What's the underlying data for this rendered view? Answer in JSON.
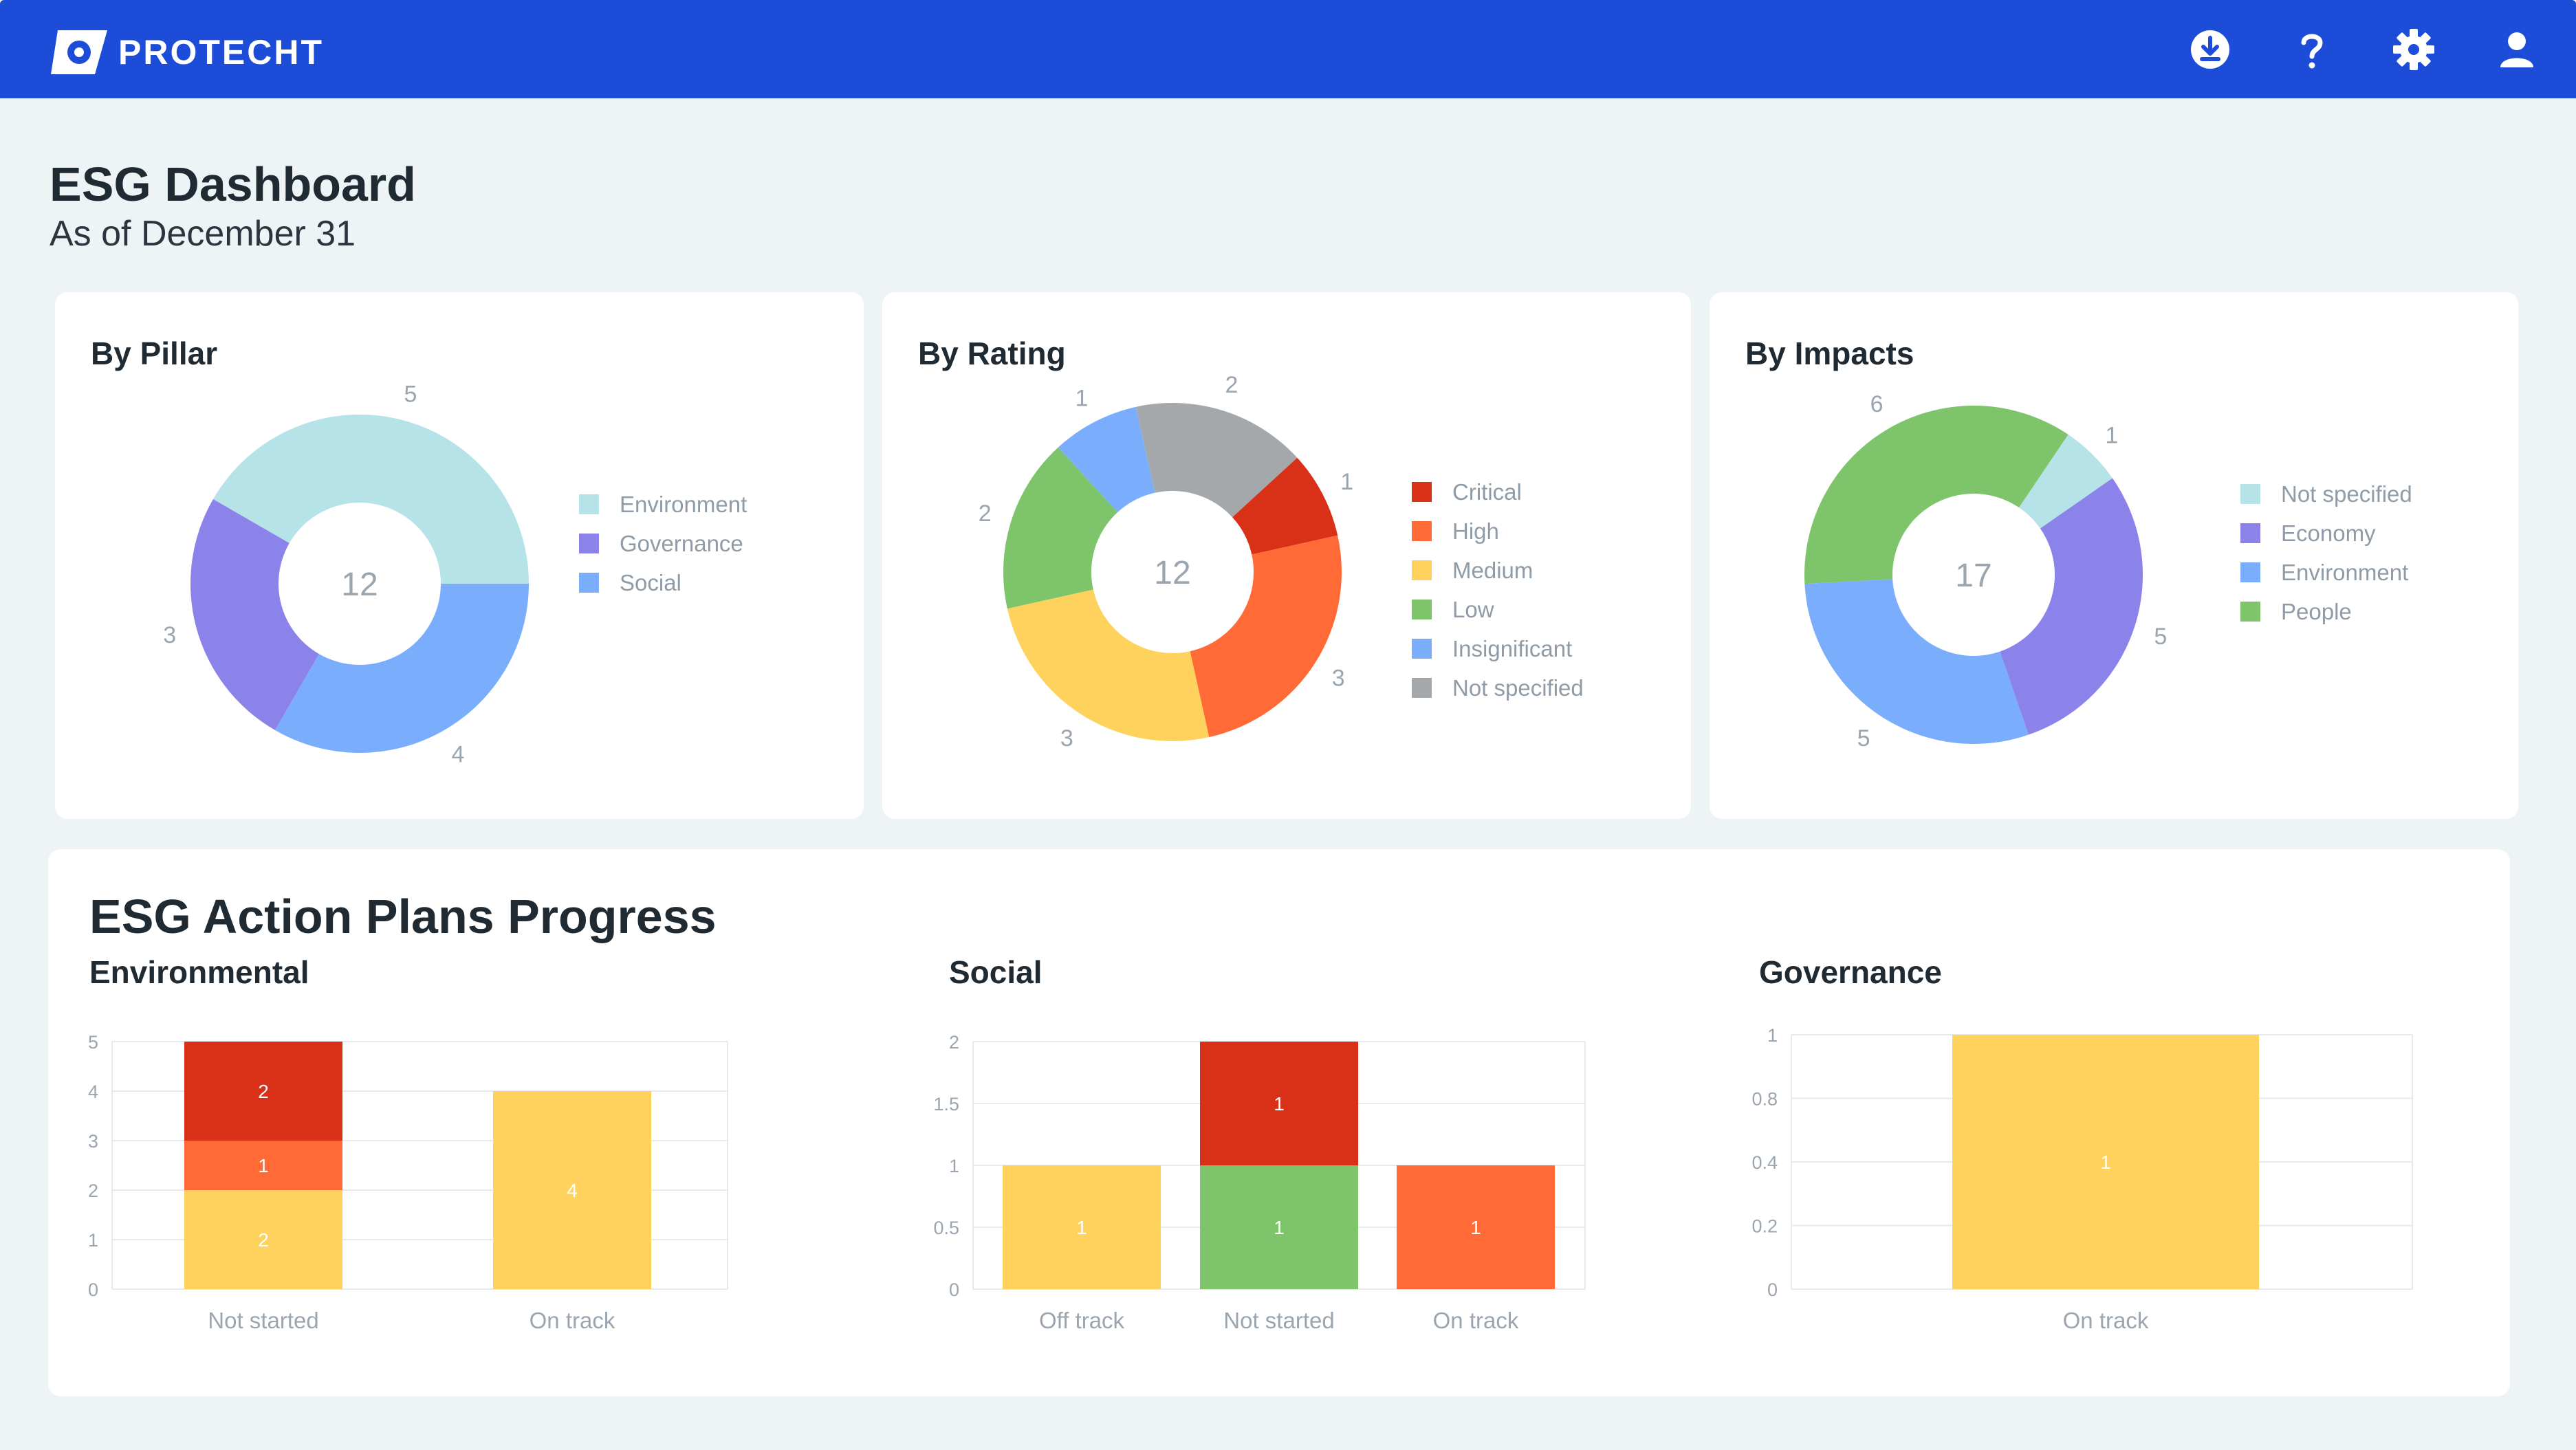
{
  "app": {
    "brand": "PROTECHT",
    "accent": "#1c4cd8",
    "toolbar_icons": [
      "download-icon",
      "help-icon",
      "gear-icon",
      "user-icon"
    ]
  },
  "header": {
    "title": "ESG Dashboard",
    "subtitle": "As of December 31"
  },
  "donuts": [
    {
      "title": "By Pillar",
      "total": "12",
      "slices": [
        {
          "name": "Environment",
          "value": 5,
          "color": "#b5e3e8"
        },
        {
          "name": "Governance",
          "value": 3,
          "color": "#8b83ea"
        },
        {
          "name": "Social",
          "value": 4,
          "color": "#7aaefc"
        }
      ]
    },
    {
      "title": "By Rating",
      "total": "12",
      "slices": [
        {
          "name": "Critical",
          "value": 1,
          "color": "#d93118"
        },
        {
          "name": "High",
          "value": 3,
          "color": "#ff6a37"
        },
        {
          "name": "Medium",
          "value": 3,
          "color": "#fed25c"
        },
        {
          "name": "Low",
          "value": 2,
          "color": "#7ec46b"
        },
        {
          "name": "Insignificant",
          "value": 1,
          "color": "#7aaefc"
        },
        {
          "name": "Not specified",
          "value": 2,
          "color": "#a4a8ab"
        }
      ]
    },
    {
      "title": "By Impacts",
      "total": "17",
      "slices": [
        {
          "name": "Not specified",
          "value": 1,
          "color": "#b5e3e8"
        },
        {
          "name": "Economy",
          "value": 5,
          "color": "#8b83ea"
        },
        {
          "name": "Environment",
          "value": 5,
          "color": "#7aaefc"
        },
        {
          "name": "People",
          "value": 6,
          "color": "#7ec46b"
        }
      ]
    }
  ],
  "plans": {
    "title": "ESG Action Plans Progress",
    "charts": [
      {
        "title": "Environmental",
        "ymax": 5,
        "yticks": [
          "0",
          "1",
          "2",
          "3",
          "4",
          "5"
        ],
        "categories": [
          "Not started",
          "On track"
        ],
        "stacks": [
          [
            {
              "value": 2,
              "label": "2",
              "color": "#fed25c"
            },
            {
              "value": 1,
              "label": "1",
              "color": "#ff6a37"
            },
            {
              "value": 2,
              "label": "2",
              "color": "#d93118"
            }
          ],
          [
            {
              "value": 4,
              "label": "4",
              "color": "#fed25c"
            }
          ]
        ]
      },
      {
        "title": "Social",
        "ymax": 2,
        "yticks": [
          "0",
          "0.5",
          "1",
          "1.5",
          "2"
        ],
        "categories": [
          "Off track",
          "Not started",
          "On track"
        ],
        "stacks": [
          [
            {
              "value": 1,
              "label": "1",
              "color": "#fed25c"
            }
          ],
          [
            {
              "value": 1,
              "label": "1",
              "color": "#7ec46b"
            },
            {
              "value": 1,
              "label": "1",
              "color": "#d93118"
            }
          ],
          [
            {
              "value": 1,
              "label": "1",
              "color": "#ff6a37"
            }
          ]
        ]
      },
      {
        "title": "Governance",
        "ymax": 1,
        "yticks": [
          "0",
          "0.2",
          "0.4",
          "0.8",
          "1"
        ],
        "categories": [
          "On track"
        ],
        "stacks": [
          [
            {
              "value": 1,
              "label": "1",
              "color": "#fed25c"
            }
          ]
        ]
      }
    ]
  },
  "chart_data": [
    {
      "type": "pie",
      "title": "By Pillar",
      "categories": [
        "Environment",
        "Governance",
        "Social"
      ],
      "values": [
        5,
        3,
        4
      ],
      "center_label": "12",
      "legend": "right"
    },
    {
      "type": "pie",
      "title": "By Rating",
      "categories": [
        "Critical",
        "High",
        "Medium",
        "Low",
        "Insignificant",
        "Not specified"
      ],
      "values": [
        1,
        3,
        3,
        2,
        1,
        2
      ],
      "center_label": "12",
      "legend": "right"
    },
    {
      "type": "pie",
      "title": "By Impacts",
      "categories": [
        "Not specified",
        "Economy",
        "Environment",
        "People"
      ],
      "values": [
        1,
        5,
        5,
        6
      ],
      "center_label": "17",
      "legend": "right"
    },
    {
      "type": "bar",
      "title": "Environmental",
      "categories": [
        "Not started",
        "On track"
      ],
      "ylim": [
        0,
        5
      ],
      "series": [
        {
          "name": "Medium",
          "values": [
            2,
            4
          ]
        },
        {
          "name": "High",
          "values": [
            1,
            0
          ]
        },
        {
          "name": "Critical",
          "values": [
            2,
            0
          ]
        }
      ]
    },
    {
      "type": "bar",
      "title": "Social",
      "categories": [
        "Off track",
        "Not started",
        "On track"
      ],
      "ylim": [
        0,
        2
      ],
      "series": [
        {
          "name": "Medium",
          "values": [
            1,
            0,
            0
          ]
        },
        {
          "name": "Low",
          "values": [
            0,
            1,
            0
          ]
        },
        {
          "name": "Critical",
          "values": [
            0,
            1,
            0
          ]
        },
        {
          "name": "High",
          "values": [
            0,
            0,
            1
          ]
        }
      ]
    },
    {
      "type": "bar",
      "title": "Governance",
      "categories": [
        "On track"
      ],
      "ylim": [
        0,
        1
      ],
      "series": [
        {
          "name": "Medium",
          "values": [
            1
          ]
        }
      ]
    }
  ]
}
